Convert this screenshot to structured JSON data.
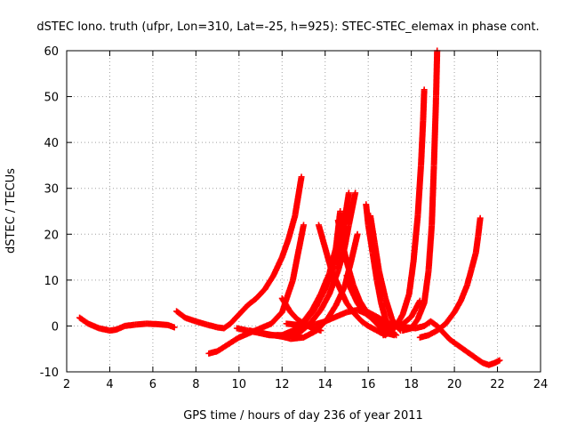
{
  "chart_data": {
    "type": "scatter",
    "title": "dSTEC Iono. truth (ufpr, Lon=310, Lat=-25, h=925): STEC-STEC_elemax in phase cont.",
    "xlabel": "GPS time / hours of day 236 of year 2011",
    "ylabel": "dSTEC  / TECUs",
    "xlim": [
      2,
      24
    ],
    "ylim": [
      -10,
      60
    ],
    "xticks": [
      "2",
      "4",
      "6",
      "8",
      "10",
      "12",
      "14",
      "16",
      "18",
      "20",
      "22",
      "24"
    ],
    "yticks": [
      "-10",
      "0",
      "10",
      "20",
      "30",
      "40",
      "50",
      "60"
    ],
    "grid": true,
    "legend": "none",
    "marker": "plus",
    "color": "#ff0000",
    "series": [
      {
        "x": [
          2.6,
          3.0,
          3.5,
          4.0,
          4.3,
          4.7,
          5.2,
          5.7,
          6.2,
          6.7,
          7.0
        ],
        "y": [
          1.8,
          0.5,
          -0.5,
          -1.0,
          -0.8,
          0.0,
          0.3,
          0.5,
          0.4,
          0.2,
          -0.3
        ]
      },
      {
        "x": [
          7.1,
          7.5,
          8.0,
          8.5,
          9.0,
          9.3,
          9.6,
          10.0,
          10.4,
          10.8,
          11.2,
          11.6,
          12.0,
          12.3,
          12.6,
          12.9
        ],
        "y": [
          3.2,
          1.8,
          1.0,
          0.3,
          -0.3,
          -0.5,
          0.5,
          2.5,
          4.5,
          6.0,
          8.0,
          11.0,
          15.0,
          19.0,
          24.0,
          32.5
        ]
      },
      {
        "x": [
          8.6,
          9.0,
          9.5,
          10.0,
          10.5,
          11.0,
          11.5,
          12.0,
          12.5,
          13.0
        ],
        "y": [
          -6.0,
          -5.5,
          -4.0,
          -2.5,
          -1.5,
          -0.5,
          0.5,
          3.0,
          10.0,
          22.0
        ]
      },
      {
        "x": [
          9.9,
          10.4,
          10.9,
          11.4,
          12.0,
          12.5,
          13.0,
          13.4,
          13.8,
          14.2,
          14.5,
          14.7
        ],
        "y": [
          -0.5,
          -1.0,
          -1.5,
          -2.0,
          -2.0,
          -1.0,
          1.0,
          3.5,
          7.0,
          11.5,
          17.0,
          25.0
        ]
      },
      {
        "x": [
          10.5,
          11.0,
          11.5,
          12.0,
          12.5,
          13.0,
          13.5,
          14.0,
          14.4,
          14.8,
          15.1
        ],
        "y": [
          -1.0,
          -1.5,
          -2.0,
          -2.2,
          -1.5,
          0.5,
          3.5,
          8.0,
          13.0,
          20.0,
          29.0
        ]
      },
      {
        "x": [
          11.0,
          11.6,
          12.2,
          12.8,
          13.3,
          13.8,
          14.2,
          14.6,
          14.9,
          15.1,
          15.4
        ],
        "y": [
          -1.5,
          -2.0,
          -2.5,
          -1.5,
          0.5,
          3.5,
          7.0,
          12.0,
          17.0,
          22.0,
          29.0
        ]
      },
      {
        "x": [
          11.8,
          12.4,
          13.0,
          13.6,
          14.1,
          14.5,
          14.9,
          15.2,
          15.5
        ],
        "y": [
          -2.0,
          -2.8,
          -2.5,
          -1.0,
          1.5,
          4.5,
          8.5,
          14.0,
          20.0
        ]
      },
      {
        "x": [
          12.0,
          12.2,
          12.4,
          12.7,
          13.0,
          13.4,
          13.8
        ],
        "y": [
          6.0,
          4.5,
          3.0,
          1.5,
          0.5,
          -0.5,
          -1.0
        ]
      },
      {
        "x": [
          12.2,
          12.6,
          13.0,
          13.5,
          14.0,
          14.5,
          15.0,
          15.5,
          16.0,
          16.5,
          17.0
        ],
        "y": [
          0.5,
          0.3,
          0.0,
          0.3,
          1.0,
          2.0,
          3.0,
          3.5,
          2.5,
          0.5,
          -1.0
        ]
      },
      {
        "x": [
          13.7,
          14.0,
          14.3,
          14.7,
          15.0,
          15.3,
          15.7,
          16.0,
          16.4,
          16.8
        ],
        "y": [
          22.0,
          17.0,
          12.0,
          8.0,
          5.0,
          3.0,
          1.0,
          0.0,
          -1.0,
          -2.0
        ]
      },
      {
        "x": [
          14.6,
          14.8,
          15.0,
          15.3,
          15.6,
          16.0,
          16.4,
          16.8,
          17.2
        ],
        "y": [
          23.0,
          18.0,
          14.0,
          9.0,
          5.5,
          2.5,
          0.5,
          -1.5,
          -2.0
        ]
      },
      {
        "x": [
          15.0,
          15.2,
          15.5,
          15.8,
          16.2,
          16.6,
          17.0,
          17.5,
          18.0,
          18.4
        ],
        "y": [
          11.0,
          8.0,
          5.0,
          3.0,
          1.5,
          0.5,
          -0.3,
          0.0,
          2.0,
          5.5
        ]
      },
      {
        "x": [
          15.9,
          16.0,
          16.2,
          16.4,
          16.6,
          16.8,
          17.0,
          17.3
        ],
        "y": [
          26.5,
          22.0,
          16.0,
          10.0,
          5.0,
          1.5,
          -1.0,
          -2.0
        ]
      },
      {
        "x": [
          16.1,
          16.3,
          16.5,
          16.8,
          17.1,
          17.5
        ],
        "y": [
          24.0,
          18.0,
          12.0,
          6.0,
          1.5,
          -1.0
        ]
      },
      {
        "x": [
          16.7,
          17.0,
          17.3,
          17.6,
          17.9,
          18.1,
          18.3,
          18.45,
          18.55,
          18.6
        ],
        "y": [
          -2.0,
          -1.5,
          0.0,
          2.5,
          7.0,
          14.0,
          24.0,
          35.0,
          45.0,
          51.5
        ]
      },
      {
        "x": [
          15.8,
          16.2,
          16.6,
          17.0,
          17.4,
          17.8,
          18.2,
          18.6,
          18.9,
          19.2,
          19.5,
          19.8,
          20.1,
          20.4,
          20.7,
          21.0,
          21.3,
          21.6,
          21.9,
          22.1
        ],
        "y": [
          3.5,
          2.5,
          1.5,
          0.5,
          0.0,
          -0.3,
          -0.5,
          0.0,
          1.0,
          0.0,
          -1.5,
          -3.0,
          -4.0,
          -5.0,
          -6.0,
          -7.0,
          -8.0,
          -8.5,
          -8.0,
          -7.5
        ]
      },
      {
        "x": [
          17.6,
          18.0,
          18.3,
          18.6,
          18.8,
          18.95,
          19.05,
          19.15,
          19.2
        ],
        "y": [
          -1.0,
          -0.5,
          1.5,
          5.0,
          12.0,
          22.0,
          35.0,
          50.0,
          60.0
        ]
      },
      {
        "x": [
          18.4,
          18.8,
          19.2,
          19.6,
          20.0,
          20.3,
          20.6,
          20.8,
          21.0,
          21.1,
          21.2
        ],
        "y": [
          -2.5,
          -2.0,
          -1.0,
          0.5,
          3.0,
          5.5,
          9.0,
          12.5,
          16.0,
          19.5,
          23.5
        ]
      }
    ]
  }
}
